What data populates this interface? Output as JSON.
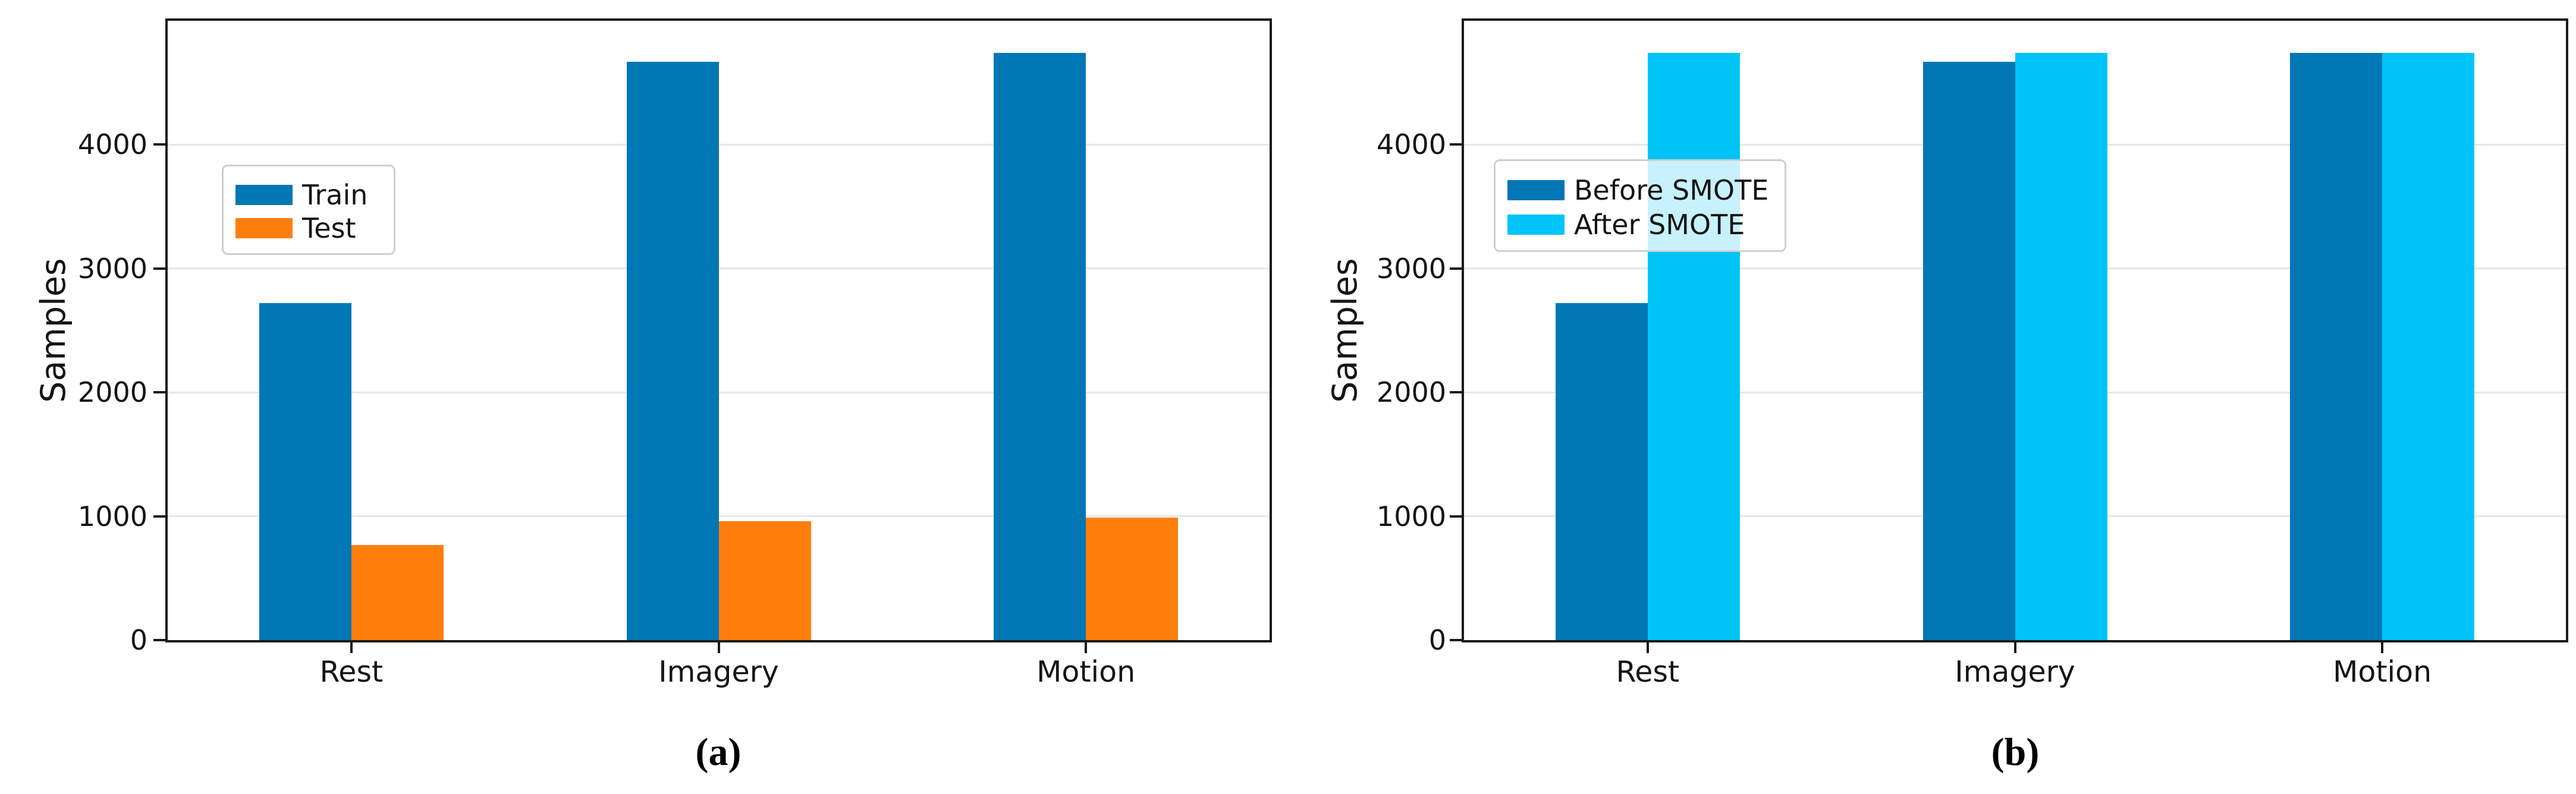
{
  "figure": {
    "ylabel": "Samples",
    "captions": {
      "a": "(a)",
      "b": "(b)"
    }
  },
  "chart_data": [
    {
      "type": "bar",
      "id": "a",
      "caption": "(a)",
      "title": "",
      "xlabel": "",
      "ylabel": "Samples",
      "categories": [
        "Rest",
        "Imagery",
        "Motion"
      ],
      "series": [
        {
          "name": "Train",
          "color": "#0277b5",
          "values": [
            2720,
            4670,
            4740
          ]
        },
        {
          "name": "Test",
          "color": "#ff7f0e",
          "values": [
            770,
            960,
            990
          ]
        }
      ],
      "ylim": [
        0,
        5000
      ],
      "yticks": [
        0,
        1000,
        2000,
        3000,
        4000
      ],
      "grid": "horizontal",
      "legend_position": "upper-left-inside"
    },
    {
      "type": "bar",
      "id": "b",
      "caption": "(b)",
      "title": "",
      "xlabel": "",
      "ylabel": "Samples",
      "categories": [
        "Rest",
        "Imagery",
        "Motion"
      ],
      "series": [
        {
          "name": "Before SMOTE",
          "color": "#0277b5",
          "values": [
            2720,
            4670,
            4740
          ]
        },
        {
          "name": "After SMOTE",
          "color": "#00c4f7",
          "values": [
            4740,
            4740,
            4740
          ]
        }
      ],
      "ylim": [
        0,
        5000
      ],
      "yticks": [
        0,
        1000,
        2000,
        3000,
        4000
      ],
      "grid": "horizontal",
      "legend_position": "upper-left-inside"
    }
  ]
}
